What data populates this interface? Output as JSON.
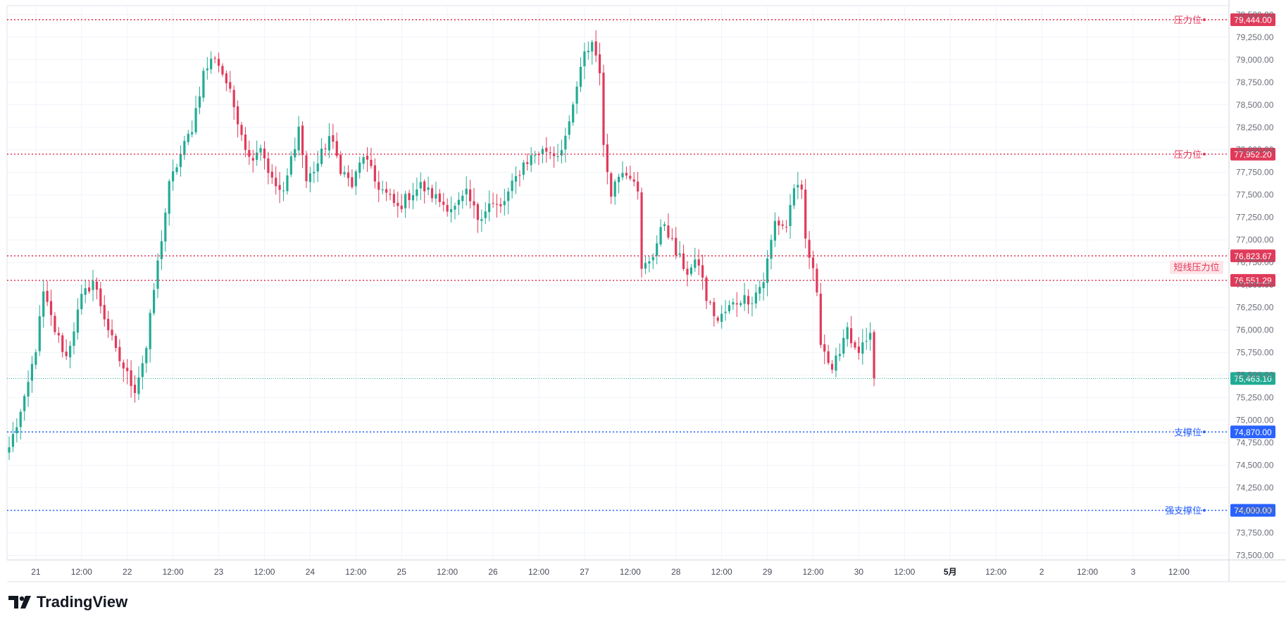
{
  "chart_data": {
    "type": "candlestick",
    "y_range": [
      73450,
      79600
    ],
    "y_ticks": [
      "73,500.00",
      "73,750.00",
      "74,000.00",
      "74,250.00",
      "74,500.00",
      "74,750.00",
      "75,000.00",
      "75,250.00",
      "75,500.00",
      "75,750.00",
      "76,000.00",
      "76,250.00",
      "76,500.00",
      "76,750.00",
      "77,000.00",
      "77,250.00",
      "77,500.00",
      "77,750.00",
      "78,000.00",
      "78,250.00",
      "78,500.00",
      "78,750.00",
      "79,000.00",
      "79,250.00",
      "79,500.00"
    ],
    "x_ticks": [
      "21",
      "12:00",
      "22",
      "12:00",
      "23",
      "12:00",
      "24",
      "12:00",
      "25",
      "12:00",
      "26",
      "12:00",
      "27",
      "12:00",
      "28",
      "12:00",
      "29",
      "12:00",
      "30",
      "12:00",
      "5月",
      "12:00",
      "2",
      "12:00",
      "3",
      "12:00"
    ],
    "bold_x_ticks": [
      "5月"
    ],
    "candle_interval": "hourly",
    "series": [
      {
        "name": "",
        "knots": [
          [
            0,
            74700
          ],
          [
            4,
            75200
          ],
          [
            7,
            75800
          ],
          [
            9,
            76400
          ],
          [
            12,
            76000
          ],
          [
            15,
            75700
          ],
          [
            19,
            76350
          ],
          [
            22,
            76550
          ],
          [
            25,
            76150
          ],
          [
            28,
            75750
          ],
          [
            31,
            75500
          ],
          [
            33,
            75350
          ],
          [
            36,
            75800
          ],
          [
            38,
            76450
          ],
          [
            42,
            77600
          ],
          [
            45,
            77950
          ],
          [
            48,
            78250
          ],
          [
            51,
            78850
          ],
          [
            54,
            79050
          ],
          [
            57,
            78750
          ],
          [
            60,
            78350
          ],
          [
            63,
            77900
          ],
          [
            66,
            78050
          ],
          [
            69,
            77650
          ],
          [
            72,
            77500
          ],
          [
            74,
            77900
          ],
          [
            76,
            78250
          ],
          [
            78,
            77650
          ],
          [
            81,
            77850
          ],
          [
            84,
            78150
          ],
          [
            87,
            77800
          ],
          [
            90,
            77600
          ],
          [
            93,
            77950
          ],
          [
            96,
            77650
          ],
          [
            99,
            77500
          ],
          [
            102,
            77350
          ],
          [
            105,
            77500
          ],
          [
            108,
            77600
          ],
          [
            111,
            77500
          ],
          [
            114,
            77400
          ],
          [
            117,
            77350
          ],
          [
            120,
            77500
          ],
          [
            123,
            77250
          ],
          [
            126,
            77400
          ],
          [
            129,
            77350
          ],
          [
            132,
            77600
          ],
          [
            135,
            77850
          ],
          [
            138,
            77950
          ],
          [
            141,
            78000
          ],
          [
            144,
            77950
          ],
          [
            147,
            78250
          ],
          [
            149,
            78700
          ],
          [
            151,
            79050
          ],
          [
            153,
            79200
          ],
          [
            155,
            78900
          ],
          [
            156,
            78000
          ],
          [
            158,
            77550
          ],
          [
            161,
            77800
          ],
          [
            164,
            77700
          ],
          [
            165,
            77500
          ],
          [
            166,
            76650
          ],
          [
            169,
            76850
          ],
          [
            172,
            77200
          ],
          [
            175,
            76850
          ],
          [
            178,
            76650
          ],
          [
            181,
            76750
          ],
          [
            183,
            76350
          ],
          [
            186,
            76100
          ],
          [
            189,
            76250
          ],
          [
            192,
            76350
          ],
          [
            195,
            76350
          ],
          [
            198,
            76550
          ],
          [
            201,
            77200
          ],
          [
            204,
            77150
          ],
          [
            206,
            77600
          ],
          [
            208,
            77500
          ],
          [
            209,
            77000
          ],
          [
            212,
            76450
          ],
          [
            213,
            75900
          ],
          [
            215,
            75650
          ],
          [
            216,
            75500
          ],
          [
            218,
            75800
          ],
          [
            220,
            76050
          ],
          [
            222,
            75750
          ],
          [
            224,
            75800
          ],
          [
            226,
            75900
          ],
          [
            227,
            75463
          ]
        ]
      }
    ],
    "last_price": {
      "label": "75,463.10",
      "value": 75463.1,
      "color": "#22ab94"
    },
    "levels": [
      {
        "value": 79444.0,
        "price_label": "79,444.00",
        "label": "压力位",
        "color": "#e03a5a"
      },
      {
        "value": 77952.2,
        "price_label": "77,952.20",
        "label": "压力位",
        "color": "#e03a5a"
      },
      {
        "value": 76823.67,
        "price_label": "76,823.67",
        "label": "",
        "color": "#e03a5a"
      },
      {
        "value": 76551.29,
        "price_label": "76,551.29",
        "label": "",
        "color": "#e03a5a"
      },
      {
        "value": 74870.0,
        "price_label": "74,870.00",
        "label": "支撑位",
        "color": "#2962ff"
      },
      {
        "value": 74000.0,
        "price_label": "74,000.00",
        "label": "强支撑位",
        "color": "#2962ff"
      }
    ],
    "zone_label": {
      "text": "短线压力位",
      "color": "#e03a5a"
    },
    "colors": {
      "up": "#22ab94",
      "down": "#e03a5a",
      "grid": "#f0f3fa",
      "axis_text": "#131722"
    },
    "grid": true
  },
  "branding": {
    "name": "TradingView"
  }
}
